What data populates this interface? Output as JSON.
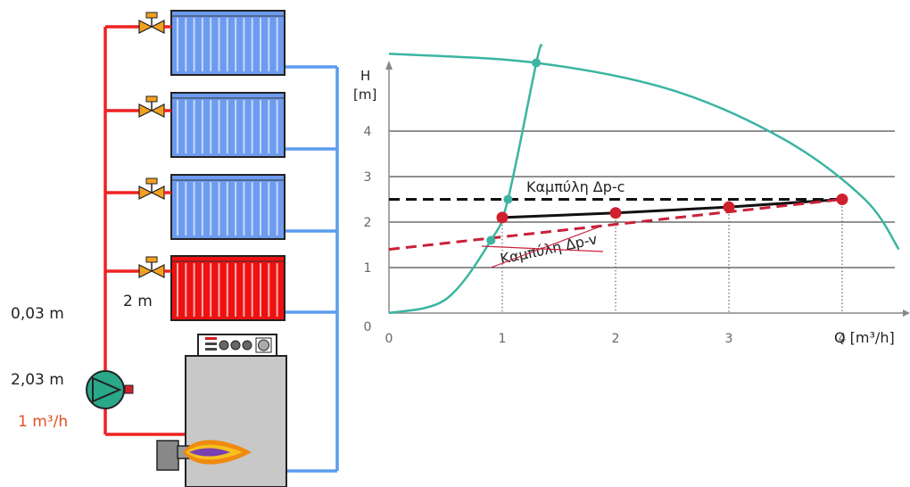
{
  "system": {
    "height_top": "0,03 m",
    "height_pump": "2,03 m",
    "flow": "1 m³/h",
    "radiator_height": "2 m"
  },
  "chart": {
    "y_label_line1": "H",
    "y_label_line2": "[m]",
    "x_label": "Q [m³/h]",
    "curve_label_c": "Καμπύλη Δp-c",
    "curve_label_v": "Καμπύλη Δp-v"
  },
  "colors": {
    "supply_pipe": "#ee2222",
    "return_pipe": "#5b9cf0",
    "radiator_blue": "#6d9bef",
    "radiator_red": "#ee1111",
    "system_curve": "#3ab5a0",
    "marker_red": "#d0202e",
    "dashed_red": "#c8203a"
  },
  "chart_data": {
    "type": "line",
    "xlim": [
      0,
      4.5
    ],
    "ylim": [
      0,
      5
    ],
    "x_ticks": [
      "0",
      "1",
      "2",
      "3",
      "4"
    ],
    "y_ticks": [
      "0",
      "1",
      "2",
      "3",
      "4"
    ],
    "series": [
      {
        "values": [
          [
            1.0,
            2.1
          ],
          [
            2.0,
            2.2
          ],
          [
            3.0,
            2.33
          ],
          [
            4.0,
            2.5
          ]
        ]
      },
      {
        "values": [
          [
            0,
            2.5
          ],
          [
            4.0,
            2.5
          ]
        ]
      },
      {
        "values": [
          [
            0,
            1.4
          ],
          [
            4.0,
            2.5
          ]
        ]
      },
      {
        "values": [
          [
            0,
            5.7
          ],
          [
            1.3,
            5.5
          ],
          [
            2.5,
            4.9
          ],
          [
            3.5,
            3.8
          ],
          [
            4.2,
            2.5
          ],
          [
            4.5,
            1.4
          ]
        ]
      },
      {
        "values": [
          [
            0,
            0
          ],
          [
            0.5,
            0.3
          ],
          [
            0.9,
            1.6
          ],
          [
            1.05,
            2.5
          ],
          [
            1.3,
            5.5
          ],
          [
            1.35,
            6.2
          ]
        ]
      }
    ],
    "op_points_system": [
      [
        0.9,
        1.6
      ],
      [
        1.05,
        2.5
      ],
      [
        1.3,
        5.5
      ]
    ],
    "op_points_red": [
      [
        1.0,
        2.1
      ],
      [
        2.0,
        2.2
      ],
      [
        3.0,
        2.33
      ],
      [
        4.0,
        2.5
      ]
    ]
  }
}
